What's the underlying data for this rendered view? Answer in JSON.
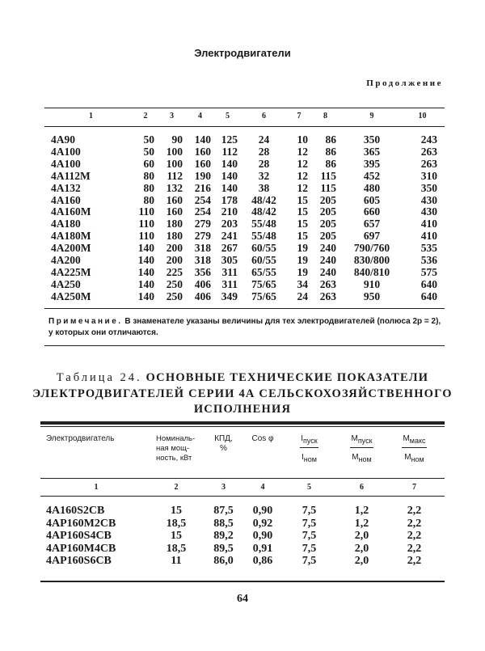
{
  "running_head": "Электродвигатели",
  "continuation_label": "Продолжение",
  "table_continued": {
    "column_numbers": [
      "1",
      "2",
      "3",
      "4",
      "5",
      "6",
      "7",
      "8",
      "9",
      "10"
    ],
    "rows": [
      [
        "4A90",
        "50",
        "90",
        "140",
        "125",
        "24",
        "10",
        "86",
        "350",
        "243"
      ],
      [
        "4A100",
        "50",
        "100",
        "160",
        "112",
        "28",
        "12",
        "86",
        "365",
        "263"
      ],
      [
        "4A100",
        "60",
        "100",
        "160",
        "140",
        "28",
        "12",
        "86",
        "395",
        "263"
      ],
      [
        "4A112M",
        "80",
        "112",
        "190",
        "140",
        "32",
        "12",
        "115",
        "452",
        "310"
      ],
      [
        "4A132",
        "80",
        "132",
        "216",
        "140",
        "38",
        "12",
        "115",
        "480",
        "350"
      ],
      [
        "4A160",
        "80",
        "160",
        "254",
        "178",
        "48/42",
        "15",
        "205",
        "605",
        "430"
      ],
      [
        "4A160M",
        "110",
        "160",
        "254",
        "210",
        "48/42",
        "15",
        "205",
        "660",
        "430"
      ],
      [
        "4A180",
        "110",
        "180",
        "279",
        "203",
        "55/48",
        "15",
        "205",
        "657",
        "410"
      ],
      [
        "4A180M",
        "110",
        "180",
        "279",
        "241",
        "55/48",
        "15",
        "205",
        "697",
        "410"
      ],
      [
        "4A200M",
        "140",
        "200",
        "318",
        "267",
        "60/55",
        "19",
        "240",
        "790/760",
        "535"
      ],
      [
        "4A200",
        "140",
        "200",
        "318",
        "305",
        "60/55",
        "19",
        "240",
        "830/800",
        "536"
      ],
      [
        "4A225M",
        "140",
        "225",
        "356",
        "311",
        "65/55",
        "19",
        "240",
        "840/810",
        "575"
      ],
      [
        "4A250",
        "140",
        "250",
        "406",
        "311",
        "75/65",
        "34",
        "263",
        "910",
        "640"
      ],
      [
        "4A250M",
        "140",
        "250",
        "406",
        "349",
        "75/65",
        "24",
        "263",
        "950",
        "640"
      ]
    ],
    "note_label": "Примечание.",
    "note_text": " В знаменателе указаны величины для тех электродвигателей (полюса 2p = 2), у которых они отличаются."
  },
  "table24": {
    "title_prefix": "Таблица 24.",
    "title_line1": " ОСНОВНЫЕ ТЕХНИЧЕСКИЕ ПОКАЗАТЕЛИ",
    "title_line2": "ЭЛЕКТРОДВИГАТЕЛЕЙ СЕРИИ 4А СЕЛЬСКОХОЗЯЙСТВЕННОГО",
    "title_line3": "ИСПОЛНЕНИЯ",
    "headers": {
      "motor": "Электродвигатель",
      "power_l1": "Номиналь-",
      "power_l2": "ная мощ-",
      "power_l3": "ность, кВт",
      "eff_l1": "КПД,",
      "eff_l2": "%",
      "cos": "Cos φ",
      "istart_num": "I",
      "istart_num_sub": "пуск",
      "istart_den": "I",
      "istart_den_sub": "ном",
      "mstart_num": "M",
      "mstart_num_sub": "пуск",
      "mstart_den": "M",
      "mstart_den_sub": "ном",
      "mmax_num": "M",
      "mmax_num_sub": "макс",
      "mmax_den": "M",
      "mmax_den_sub": "ном"
    },
    "column_numbers": [
      "1",
      "2",
      "3",
      "4",
      "5",
      "6",
      "7"
    ],
    "rows": [
      [
        "4A160S2CB",
        "15",
        "87,5",
        "0,90",
        "7,5",
        "1,2",
        "2,2"
      ],
      [
        "4AP160M2CB",
        "18,5",
        "88,5",
        "0,92",
        "7,5",
        "1,2",
        "2,2"
      ],
      [
        "4AP160S4CB",
        "15",
        "89,2",
        "0,90",
        "7,5",
        "2,0",
        "2,2"
      ],
      [
        "4AP160M4CB",
        "18,5",
        "89,5",
        "0,91",
        "7,5",
        "2,0",
        "2,2"
      ],
      [
        "4AP160S6CB",
        "11",
        "86,0",
        "0,86",
        "7,5",
        "2,0",
        "2,2"
      ]
    ]
  },
  "page_number": "64"
}
